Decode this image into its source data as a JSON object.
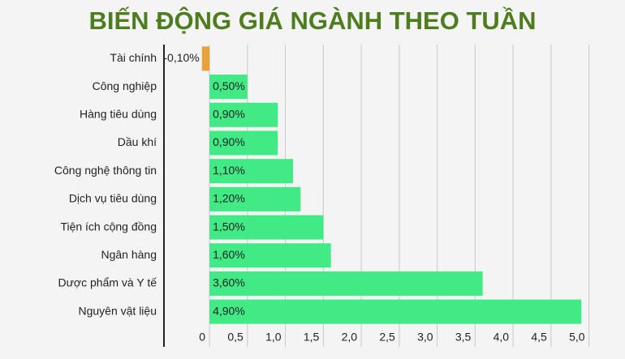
{
  "chart_data": {
    "type": "hbar",
    "title": "BIẾN ĐỘNG GIÁ NGÀNH THEO TUẦN",
    "categories": [
      "Tài chính",
      "Công nghiệp",
      "Hàng tiêu dùng",
      "Dầu khí",
      "Công nghệ thông tin",
      "Dịch vụ tiêu dùng",
      "Tiện ích cộng đồng",
      "Ngân hàng",
      "Dược phẩm và Y tế",
      "Nguyên vật liệu"
    ],
    "values": [
      -0.1,
      0.5,
      0.9,
      0.9,
      1.1,
      1.2,
      1.5,
      1.6,
      3.6,
      4.9
    ],
    "value_labels": [
      "-0,10%",
      "0,50%",
      "0,90%",
      "0,90%",
      "1,10%",
      "1,20%",
      "1,50%",
      "1,60%",
      "3,60%",
      "4,90%"
    ],
    "positive_color": "#41ea84",
    "negative_color": "#e9a23b",
    "xlim": [
      -0.6,
      5.4
    ],
    "xticks": [
      0,
      {
        "value": 0.5,
        "label": "0,5"
      },
      {
        "value": 1,
        "label": "1,0"
      },
      {
        "value": 1.5,
        "label": "1,5"
      },
      {
        "value": 2,
        "label": "2,0"
      },
      {
        "value": 2.5,
        "label": "2,5"
      },
      {
        "value": 3,
        "label": "3,0"
      },
      {
        "value": 3.5,
        "label": "3,5"
      },
      {
        "value": 4,
        "label": "4,0"
      },
      {
        "value": 4.5,
        "label": "4,5"
      },
      {
        "value": 5,
        "label": "5,0"
      }
    ],
    "grid": true
  }
}
